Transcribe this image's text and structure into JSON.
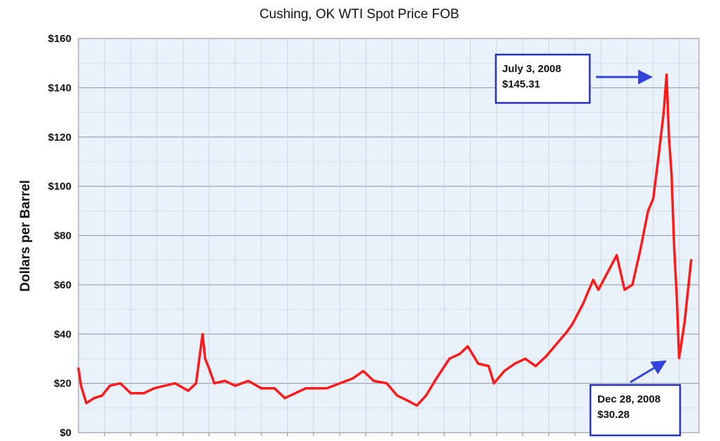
{
  "chart_data": {
    "type": "line",
    "title": "Cushing, OK WTI Spot Price FOB",
    "ylabel": "Dollars per Barrel",
    "xlabel": "",
    "ylim": [
      0,
      160
    ],
    "y_ticks": [
      "$0",
      "$20",
      "$40",
      "$60",
      "$80",
      "$100",
      "$120",
      "$140",
      "$160"
    ],
    "y_tick_values": [
      0,
      20,
      40,
      60,
      80,
      100,
      120,
      140,
      160
    ],
    "grid": true,
    "series_color": "#ff1a1a",
    "plot_background": "#e9f1fb",
    "x": [
      1986.0,
      1986.1,
      1986.3,
      1986.6,
      1986.9,
      1987.2,
      1987.6,
      1988.0,
      1988.5,
      1988.9,
      1989.3,
      1989.7,
      1990.2,
      1990.5,
      1990.75,
      1990.85,
      1991.0,
      1991.2,
      1991.6,
      1992.0,
      1992.5,
      1993.0,
      1993.5,
      1993.9,
      1994.3,
      1994.7,
      1995.0,
      1995.5,
      1996.0,
      1996.5,
      1996.9,
      1997.3,
      1997.8,
      1998.2,
      1998.6,
      1998.95,
      1999.3,
      1999.7,
      2000.2,
      2000.6,
      2000.9,
      2001.3,
      2001.7,
      2001.9,
      2002.3,
      2002.7,
      2003.1,
      2003.5,
      2003.9,
      2004.3,
      2004.7,
      2004.9,
      2005.3,
      2005.7,
      2005.9,
      2006.3,
      2006.6,
      2006.9,
      2007.2,
      2007.5,
      2007.8,
      2008.0,
      2008.2,
      2008.4,
      2008.51,
      2008.6,
      2008.7,
      2008.8,
      2008.9,
      2008.99,
      2009.1,
      2009.2,
      2009.35,
      2009.45
    ],
    "values": [
      26,
      19,
      12,
      14,
      15,
      19,
      20,
      16,
      16,
      18,
      19,
      20,
      17,
      20,
      40,
      30,
      26,
      20,
      21,
      19,
      21,
      18,
      18,
      14,
      16,
      18,
      18,
      18,
      20,
      22,
      25,
      21,
      20,
      15,
      13,
      11,
      15,
      22,
      30,
      32,
      35,
      28,
      27,
      20,
      25,
      28,
      30,
      27,
      31,
      36,
      41,
      44,
      52,
      62,
      58,
      66,
      72,
      58,
      60,
      74,
      90,
      95,
      112,
      130,
      145.31,
      120,
      105,
      75,
      55,
      30.28,
      38,
      45,
      60,
      70
    ],
    "annotations": [
      {
        "date": "July 3, 2008",
        "value_label": "$145.31",
        "x": 2008.51,
        "y": 145.31
      },
      {
        "date": "Dec 28, 2008",
        "value_label": "$30.28",
        "x": 2008.99,
        "y": 30.28
      }
    ]
  }
}
